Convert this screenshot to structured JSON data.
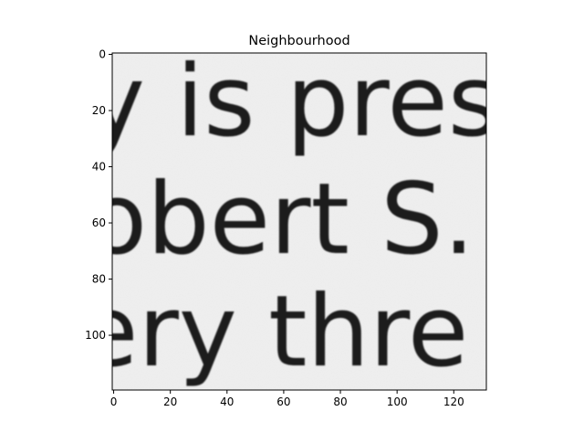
{
  "chart_data": {
    "type": "heatmap",
    "title": "Neighbourhood",
    "xlabel": "",
    "ylabel": "",
    "colormap": "gray",
    "x_range": [
      -0.5,
      131.5
    ],
    "y_range": [
      119.5,
      -0.5
    ],
    "x_ticks": [
      0,
      20,
      40,
      60,
      80,
      100,
      120
    ],
    "y_ticks": [
      0,
      20,
      40,
      60,
      80,
      100
    ],
    "grid": false,
    "image_text_lines": [
      "y is pres",
      "obert S.",
      "ery thre"
    ]
  }
}
